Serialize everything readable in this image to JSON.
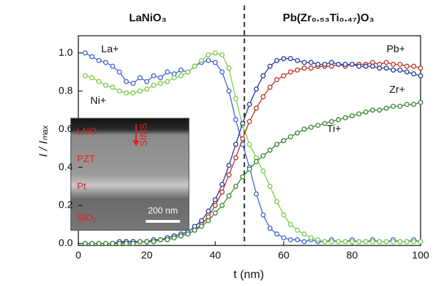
{
  "chart_data": {
    "type": "line",
    "xlabel": "t (nm)",
    "ylabel": "I / Iₘₐₓ",
    "xlim": [
      0,
      100
    ],
    "ylim": [
      -0.01,
      1.09
    ],
    "xticks": [
      0,
      20,
      40,
      60,
      80,
      100
    ],
    "yticks": [
      {
        "value": 0,
        "label": "0.0"
      },
      0.2,
      0.4,
      0.6,
      0.8,
      {
        "value": 1,
        "label": "1.0"
      }
    ],
    "regions": [
      "LaNiO₃",
      "Pb(Zr₀.₅₃Ti₀.₄₇)O₃"
    ],
    "divider": 48.5,
    "inset_labels": [
      "LNO",
      "SIMS",
      "PZT",
      "Pt",
      "SiO₂",
      "200 nm"
    ],
    "x": [
      2,
      4,
      6,
      8,
      10,
      12,
      14,
      16,
      18,
      20,
      22,
      24,
      26,
      28,
      30,
      32,
      34,
      36,
      38,
      40,
      42,
      44,
      46,
      48,
      50,
      52,
      54,
      56,
      58,
      60,
      62,
      64,
      66,
      68,
      70,
      72,
      74,
      76,
      78,
      80,
      82,
      84,
      86,
      88,
      90,
      92,
      94,
      96,
      98,
      100
    ],
    "series": [
      {
        "name": "La+",
        "color": "#4468d0",
        "values": [
          1.0,
          0.98,
          0.96,
          0.95,
          0.93,
          0.9,
          0.85,
          0.84,
          0.87,
          0.85,
          0.88,
          0.87,
          0.9,
          0.89,
          0.91,
          0.9,
          0.93,
          0.95,
          0.96,
          0.95,
          0.9,
          0.8,
          0.65,
          0.52,
          0.4,
          0.26,
          0.15,
          0.08,
          0.05,
          0.03,
          0.02,
          0.02,
          0.01,
          0.02,
          0.01,
          0.01,
          0.02,
          0.01,
          0.01,
          0.02,
          0.01,
          0.01,
          0.02,
          0.01,
          0.01,
          0.02,
          0.01,
          0.01,
          0.02,
          0.01
        ]
      },
      {
        "name": "Ni+",
        "color": "#7ccf4f",
        "values": [
          0.88,
          0.87,
          0.85,
          0.83,
          0.82,
          0.8,
          0.79,
          0.79,
          0.8,
          0.81,
          0.83,
          0.84,
          0.85,
          0.87,
          0.88,
          0.9,
          0.93,
          0.96,
          0.99,
          1.0,
          0.99,
          0.92,
          0.76,
          0.62,
          0.52,
          0.45,
          0.38,
          0.3,
          0.22,
          0.15,
          0.1,
          0.07,
          0.05,
          0.03,
          0.02,
          0.01,
          0.01,
          0.01,
          0.01,
          0.01,
          0.01,
          0.01,
          0.01,
          0.01,
          0.01,
          0.01,
          0.01,
          0.01,
          0.01,
          0.01
        ]
      },
      {
        "name": "Pb+",
        "color": "#c0392b",
        "values": [
          0,
          0,
          0,
          0,
          0,
          0,
          0.01,
          0.01,
          0.01,
          0.01,
          0.01,
          0.02,
          0.02,
          0.03,
          0.04,
          0.05,
          0.07,
          0.1,
          0.14,
          0.2,
          0.27,
          0.36,
          0.45,
          0.55,
          0.64,
          0.71,
          0.77,
          0.82,
          0.86,
          0.88,
          0.9,
          0.91,
          0.92,
          0.92,
          0.93,
          0.93,
          0.93,
          0.94,
          0.93,
          0.94,
          0.94,
          0.94,
          0.95,
          0.94,
          0.95,
          0.94,
          0.94,
          0.93,
          0.93,
          0.92
        ]
      },
      {
        "name": "Zr+",
        "color": "#2a3fa0",
        "values": [
          0,
          0,
          0,
          0,
          0,
          0.01,
          0.01,
          0.01,
          0.01,
          0.01,
          0.02,
          0.02,
          0.03,
          0.04,
          0.05,
          0.06,
          0.09,
          0.12,
          0.17,
          0.23,
          0.31,
          0.41,
          0.52,
          0.63,
          0.73,
          0.81,
          0.88,
          0.93,
          0.96,
          0.97,
          0.97,
          0.96,
          0.95,
          0.95,
          0.94,
          0.94,
          0.95,
          0.94,
          0.94,
          0.94,
          0.93,
          0.93,
          0.93,
          0.92,
          0.92,
          0.91,
          0.91,
          0.9,
          0.89,
          0.88
        ]
      },
      {
        "name": "Ti+",
        "color": "#3f8a3a",
        "values": [
          0,
          0,
          0,
          0,
          0,
          0,
          0,
          0,
          0.01,
          0.01,
          0.01,
          0.02,
          0.02,
          0.03,
          0.04,
          0.05,
          0.07,
          0.09,
          0.12,
          0.16,
          0.2,
          0.25,
          0.3,
          0.35,
          0.39,
          0.43,
          0.46,
          0.49,
          0.52,
          0.54,
          0.56,
          0.58,
          0.6,
          0.61,
          0.62,
          0.63,
          0.64,
          0.65,
          0.66,
          0.67,
          0.68,
          0.69,
          0.7,
          0.7,
          0.71,
          0.72,
          0.72,
          0.73,
          0.73,
          0.74
        ]
      }
    ]
  }
}
